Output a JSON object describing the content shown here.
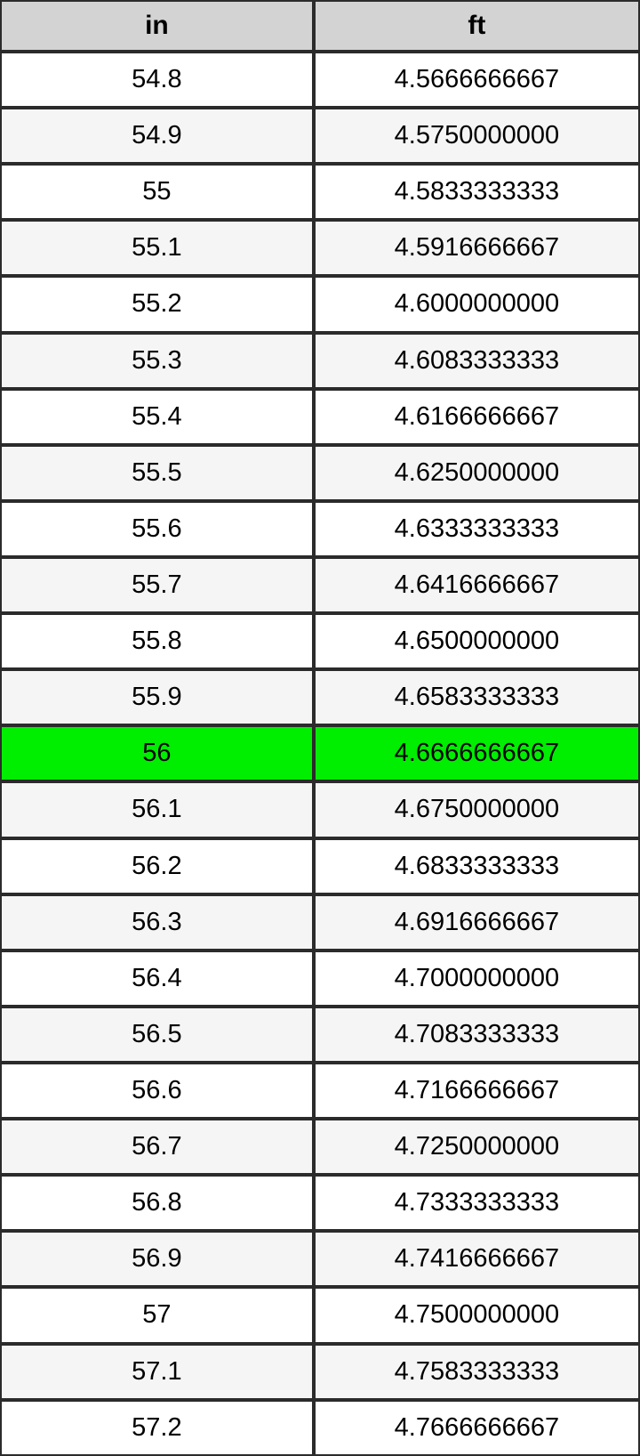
{
  "table": {
    "columns": [
      {
        "key": "in",
        "label": "in"
      },
      {
        "key": "ft",
        "label": "ft"
      }
    ],
    "highlighted_in": "56",
    "rows": [
      {
        "in": "54.8",
        "ft": "4.5666666667"
      },
      {
        "in": "54.9",
        "ft": "4.5750000000"
      },
      {
        "in": "55",
        "ft": "4.5833333333"
      },
      {
        "in": "55.1",
        "ft": "4.5916666667"
      },
      {
        "in": "55.2",
        "ft": "4.6000000000"
      },
      {
        "in": "55.3",
        "ft": "4.6083333333"
      },
      {
        "in": "55.4",
        "ft": "4.6166666667"
      },
      {
        "in": "55.5",
        "ft": "4.6250000000"
      },
      {
        "in": "55.6",
        "ft": "4.6333333333"
      },
      {
        "in": "55.7",
        "ft": "4.6416666667"
      },
      {
        "in": "55.8",
        "ft": "4.6500000000"
      },
      {
        "in": "55.9",
        "ft": "4.6583333333"
      },
      {
        "in": "56",
        "ft": "4.6666666667"
      },
      {
        "in": "56.1",
        "ft": "4.6750000000"
      },
      {
        "in": "56.2",
        "ft": "4.6833333333"
      },
      {
        "in": "56.3",
        "ft": "4.6916666667"
      },
      {
        "in": "56.4",
        "ft": "4.7000000000"
      },
      {
        "in": "56.5",
        "ft": "4.7083333333"
      },
      {
        "in": "56.6",
        "ft": "4.7166666667"
      },
      {
        "in": "56.7",
        "ft": "4.7250000000"
      },
      {
        "in": "56.8",
        "ft": "4.7333333333"
      },
      {
        "in": "56.9",
        "ft": "4.7416666667"
      },
      {
        "in": "57",
        "ft": "4.7500000000"
      },
      {
        "in": "57.1",
        "ft": "4.7583333333"
      },
      {
        "in": "57.2",
        "ft": "4.7666666667"
      }
    ]
  },
  "colors": {
    "border": "#2b2b2b",
    "header_bg": "#d3d3d3",
    "row_bg": "#ffffff",
    "row_alt_bg": "#f5f5f5",
    "highlight_bg": "#00ee00"
  },
  "chart_data": {
    "type": "table",
    "title": "",
    "columns": [
      "in",
      "ft"
    ],
    "x": [
      54.8,
      54.9,
      55,
      55.1,
      55.2,
      55.3,
      55.4,
      55.5,
      55.6,
      55.7,
      55.8,
      55.9,
      56,
      56.1,
      56.2,
      56.3,
      56.4,
      56.5,
      56.6,
      56.7,
      56.8,
      56.9,
      57,
      57.1,
      57.2
    ],
    "series": [
      {
        "name": "ft",
        "values": [
          4.5666666667,
          4.575,
          4.5833333333,
          4.5916666667,
          4.6,
          4.6083333333,
          4.6166666667,
          4.625,
          4.6333333333,
          4.6416666667,
          4.65,
          4.6583333333,
          4.6666666667,
          4.675,
          4.6833333333,
          4.6916666667,
          4.7,
          4.7083333333,
          4.7166666667,
          4.725,
          4.7333333333,
          4.7416666667,
          4.75,
          4.7583333333,
          4.7666666667
        ]
      }
    ],
    "annotations": [
      "Row with in=56 is highlighted green"
    ]
  }
}
